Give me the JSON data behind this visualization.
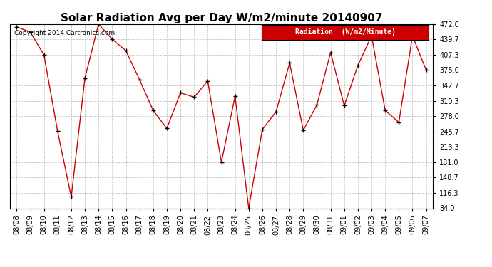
{
  "title": "Solar Radiation Avg per Day W/m2/minute 20140907",
  "copyright": "Copyright 2014 Cartronics.com",
  "legend_label": "Radiation  (W/m2/Minute)",
  "dates": [
    "08/08",
    "08/09",
    "08/10",
    "08/11",
    "08/12",
    "08/13",
    "08/14",
    "08/15",
    "08/16",
    "08/17",
    "08/18",
    "08/19",
    "08/20",
    "08/21",
    "08/22",
    "08/23",
    "08/24",
    "08/25",
    "08/26",
    "08/27",
    "08/28",
    "08/29",
    "08/30",
    "08/31",
    "09/01",
    "09/02",
    "09/03",
    "09/04",
    "09/05",
    "09/06",
    "09/07"
  ],
  "values": [
    466,
    455,
    407,
    246,
    108,
    358,
    472,
    440,
    416,
    355,
    290,
    252,
    327,
    318,
    352,
    181,
    320,
    84,
    250,
    287,
    390,
    248,
    302,
    412,
    300,
    385,
    447,
    290,
    265,
    447,
    375
  ],
  "ylim": [
    84.0,
    472.0
  ],
  "yticks": [
    84.0,
    116.3,
    148.7,
    181.0,
    213.3,
    245.7,
    278.0,
    310.3,
    342.7,
    375.0,
    407.3,
    439.7,
    472.0
  ],
  "line_color": "#cc0000",
  "marker": "+",
  "marker_color": "black",
  "marker_size": 5,
  "grid_color": "#bbbbbb",
  "bg_color": "#ffffff",
  "title_fontsize": 11,
  "copyright_fontsize": 6.5,
  "tick_fontsize": 7,
  "legend_bg": "#cc0000",
  "legend_fg": "#ffffff",
  "legend_label_fontsize": 7
}
